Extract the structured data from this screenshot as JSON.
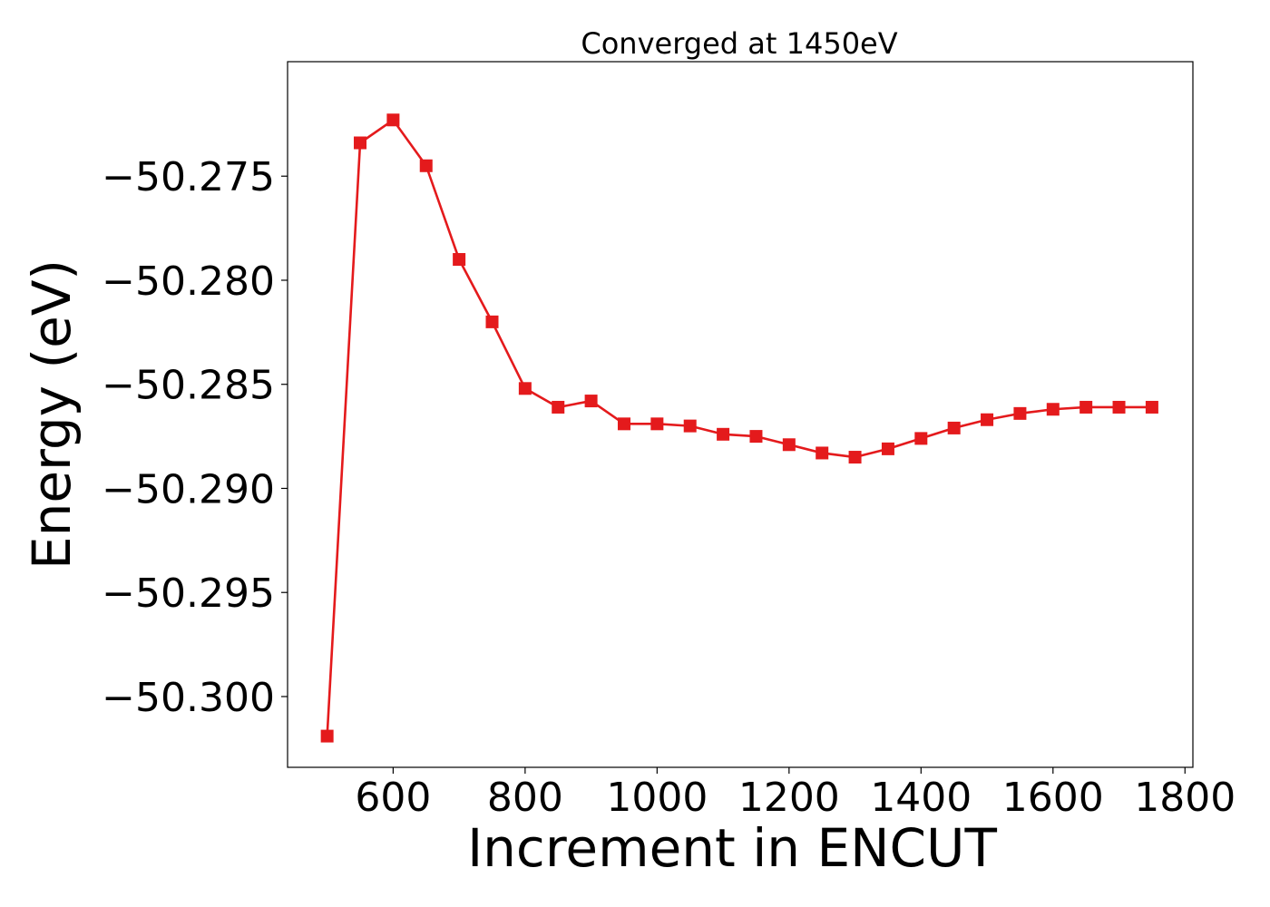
{
  "chart_data": {
    "type": "line",
    "title": "Converged at 1450eV",
    "xlabel": "Increment in ENCUT",
    "ylabel": "Energy (eV)",
    "xlim": [
      440,
      1812
    ],
    "ylim": [
      -50.3034,
      -50.2695
    ],
    "xticks": [
      600,
      800,
      1000,
      1200,
      1400,
      1600,
      1800
    ],
    "yticks": [
      -50.3,
      -50.295,
      -50.29,
      -50.285,
      -50.28,
      -50.275
    ],
    "xtick_labels": [
      "600",
      "800",
      "1000",
      "1200",
      "1400",
      "1600",
      "1800"
    ],
    "ytick_labels": [
      "−50.300",
      "−50.295",
      "−50.290",
      "−50.285",
      "−50.280",
      "−50.275"
    ],
    "grid": false,
    "series": [
      {
        "color": "#e41a1c",
        "marker": "square",
        "x": [
          500,
          550,
          600,
          650,
          700,
          750,
          800,
          850,
          900,
          950,
          1000,
          1050,
          1100,
          1150,
          1200,
          1250,
          1300,
          1350,
          1400,
          1450,
          1500,
          1550,
          1600,
          1650,
          1700,
          1750
        ],
        "y": [
          -50.3019,
          -50.2734,
          -50.2723,
          -50.2745,
          -50.279,
          -50.282,
          -50.2852,
          -50.2861,
          -50.2858,
          -50.2869,
          -50.2869,
          -50.287,
          -50.2874,
          -50.2875,
          -50.2879,
          -50.2883,
          -50.2885,
          -50.2881,
          -50.2876,
          -50.2871,
          -50.2867,
          -50.2864,
          -50.2862,
          -50.2861,
          -50.2861,
          -50.2861
        ]
      }
    ]
  }
}
